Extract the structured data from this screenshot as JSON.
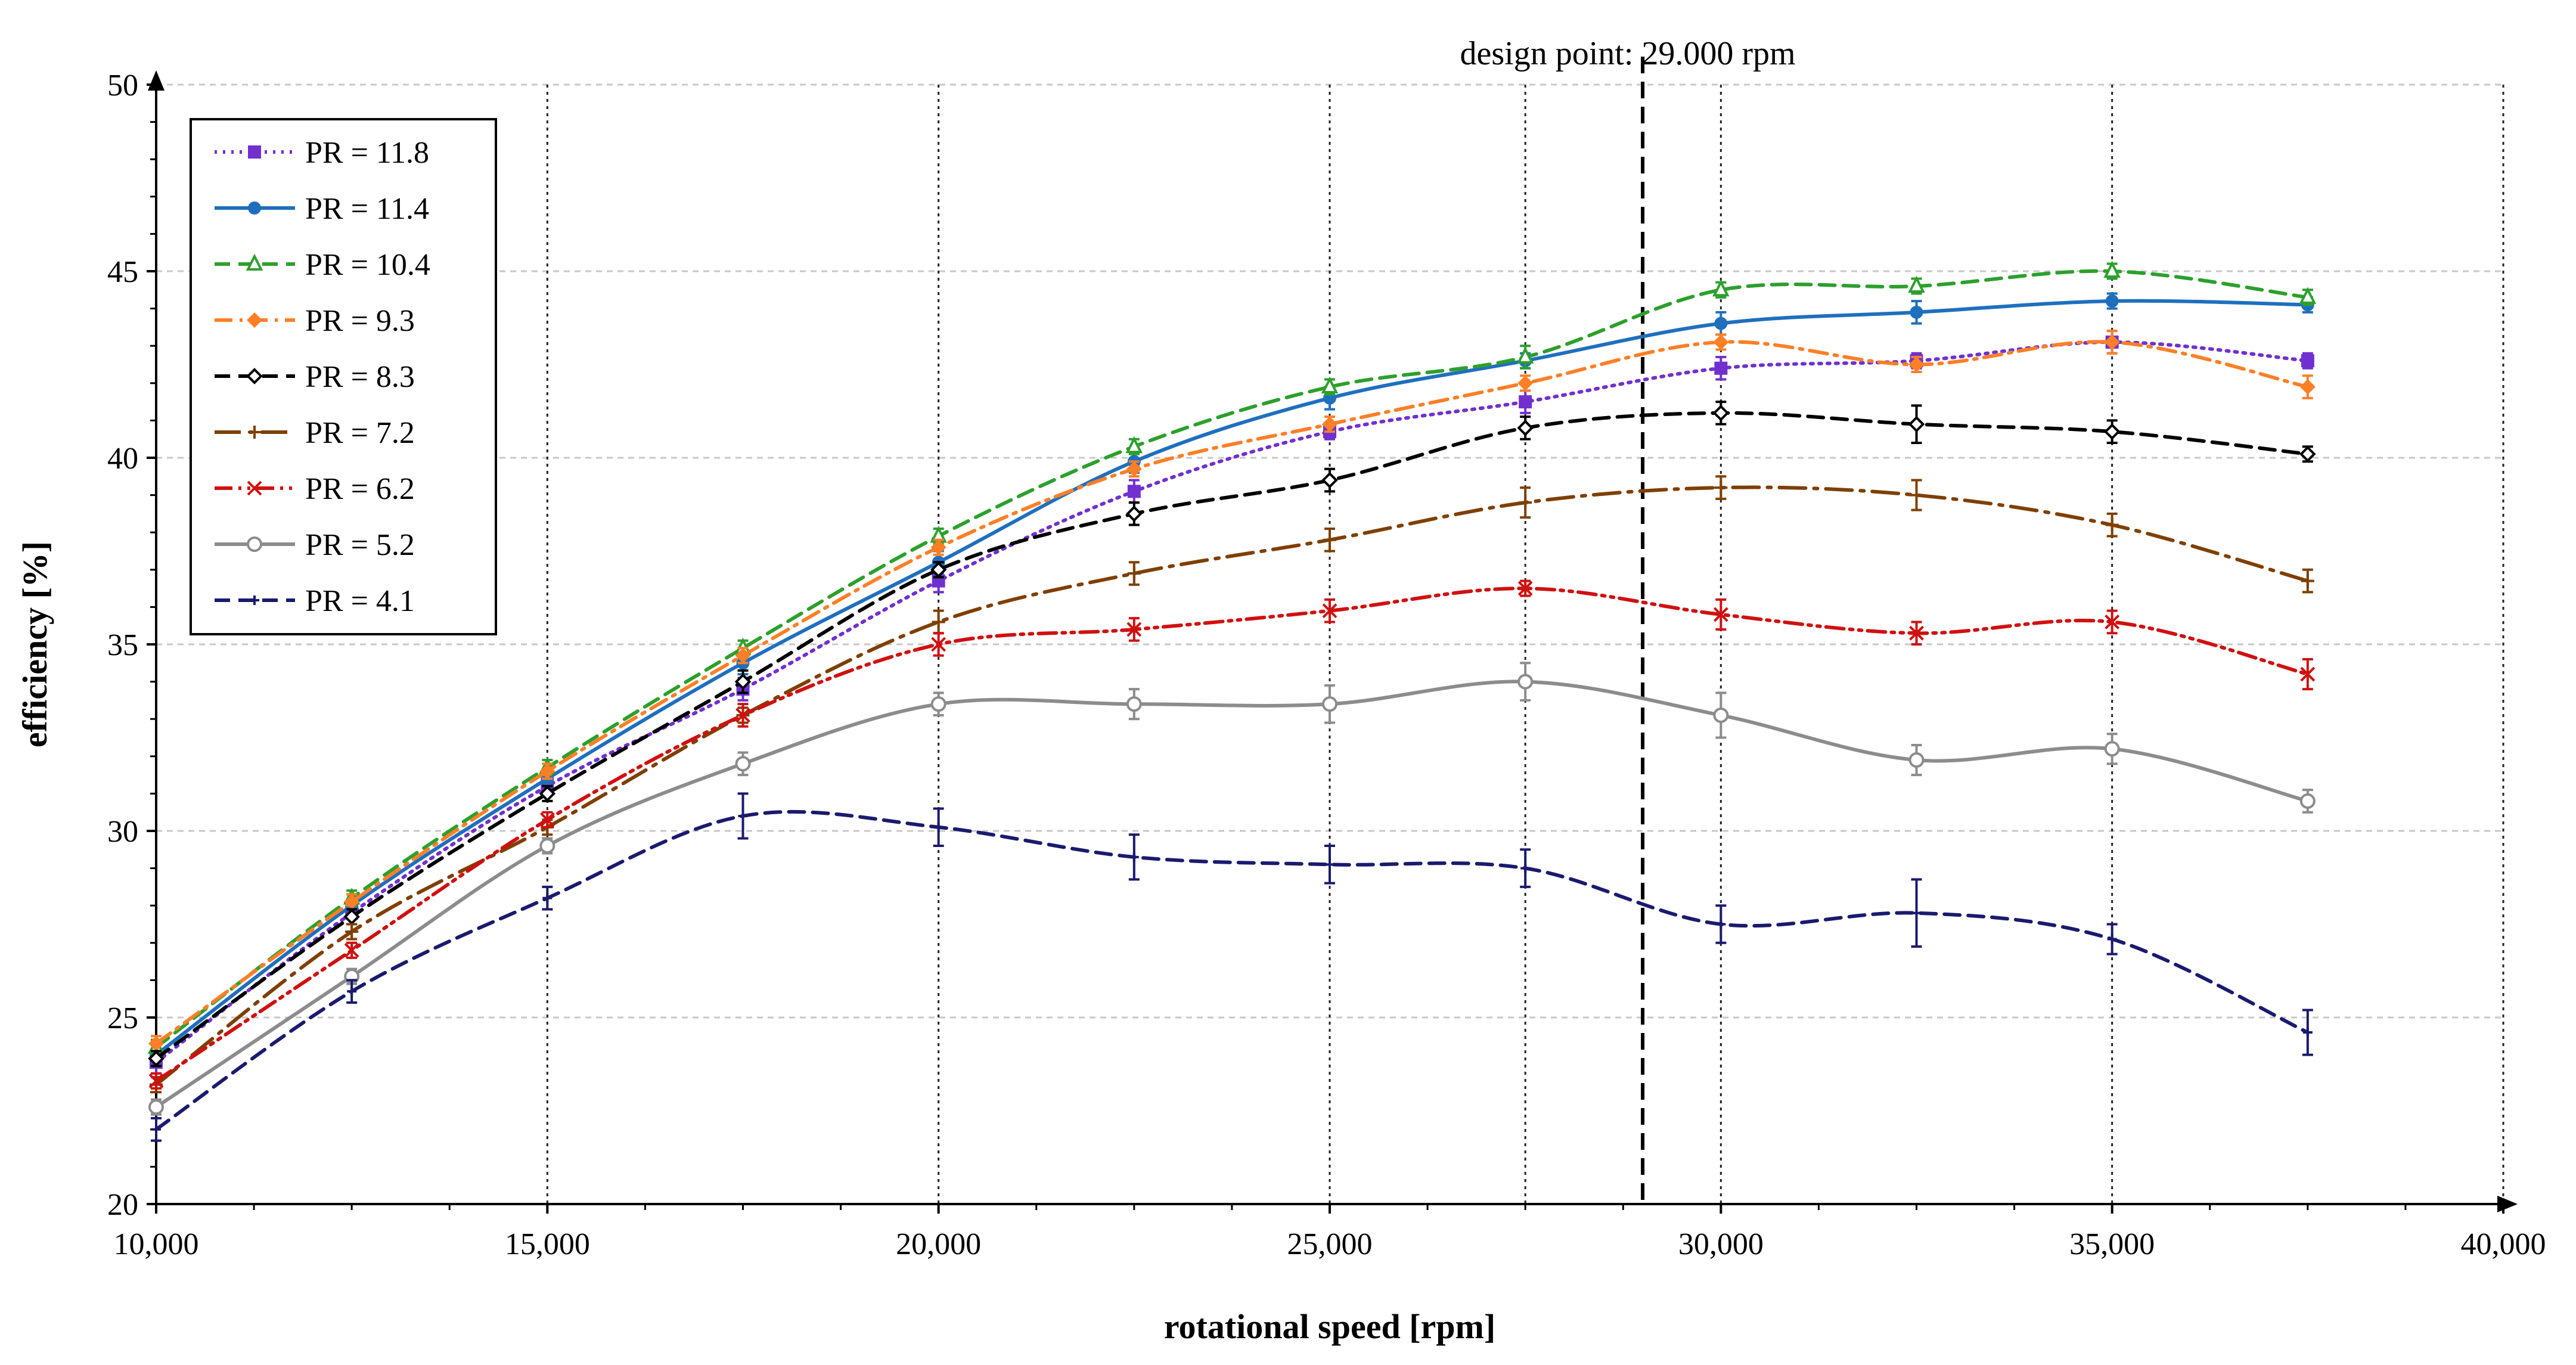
{
  "chart_data": {
    "type": "line",
    "title": "",
    "xlabel": "rotational speed [rpm]",
    "ylabel": "efficiency [%]",
    "xlim": [
      10000,
      40000
    ],
    "ylim": [
      20,
      50
    ],
    "x_ticks": [
      10000,
      15000,
      20000,
      25000,
      30000,
      35000,
      40000
    ],
    "x_tick_labels": [
      "10,000",
      "15,000",
      "20,000",
      "25,000",
      "30,000",
      "35,000",
      "40,000"
    ],
    "y_ticks": [
      20,
      25,
      30,
      35,
      40,
      45,
      50
    ],
    "y_tick_labels": [
      "20",
      "25",
      "30",
      "35",
      "40",
      "45",
      "50"
    ],
    "vertical_gridlines": [
      15000,
      20000,
      25000,
      27500,
      30000,
      35000,
      40000
    ],
    "legend_position": "top-left",
    "annotation": {
      "text": "design point: 29.000 rpm",
      "x": 29000
    },
    "x": [
      10000,
      12500,
      15000,
      17500,
      20000,
      22500,
      25000,
      27500,
      30000,
      32500,
      35000,
      37500
    ],
    "series": [
      {
        "name": "PR = 11.8",
        "color": "#7030d0",
        "dash": "dot",
        "marker": "square",
        "values": [
          23.8,
          27.8,
          31.2,
          33.8,
          36.7,
          39.1,
          40.7,
          41.5,
          42.4,
          42.6,
          43.1,
          42.6
        ],
        "errors": [
          0.3,
          0.3,
          0.2,
          0.3,
          0.3,
          0.3,
          0.2,
          0.3,
          0.3,
          0.2,
          0.3,
          0.2
        ]
      },
      {
        "name": "PR = 11.4",
        "color": "#1f6fbf",
        "dash": "solid",
        "marker": "circle",
        "values": [
          24.0,
          28.0,
          31.4,
          34.5,
          37.2,
          39.9,
          41.6,
          42.6,
          43.6,
          43.9,
          44.2,
          44.1
        ],
        "errors": [
          0.3,
          0.3,
          0.2,
          0.3,
          0.3,
          0.3,
          0.3,
          0.2,
          0.3,
          0.3,
          0.2,
          0.2
        ]
      },
      {
        "name": "PR = 10.4",
        "color": "#2ca02c",
        "dash": "dash",
        "marker": "triangle",
        "values": [
          24.2,
          28.2,
          31.7,
          34.9,
          37.9,
          40.3,
          41.9,
          42.7,
          44.5,
          44.6,
          45.0,
          44.3
        ],
        "errors": [
          0.2,
          0.2,
          0.2,
          0.2,
          0.2,
          0.2,
          0.2,
          0.3,
          0.2,
          0.2,
          0.2,
          0.2
        ]
      },
      {
        "name": "PR = 9.3",
        "color": "#ff7f27",
        "dash": "dashdot",
        "marker": "diamond",
        "values": [
          24.3,
          28.1,
          31.6,
          34.7,
          37.6,
          39.7,
          40.9,
          42.0,
          43.1,
          42.5,
          43.1,
          41.9
        ],
        "errors": [
          0.2,
          0.2,
          0.2,
          0.2,
          0.2,
          0.2,
          0.2,
          0.2,
          0.2,
          0.2,
          0.3,
          0.3
        ]
      },
      {
        "name": "PR = 8.3",
        "color": "#000000",
        "dash": "dash",
        "marker": "diamond-open",
        "values": [
          23.9,
          27.7,
          31.0,
          34.0,
          37.0,
          38.5,
          39.4,
          40.8,
          41.2,
          40.9,
          40.7,
          40.1
        ],
        "errors": [
          0.2,
          0.2,
          0.2,
          0.3,
          0.2,
          0.3,
          0.3,
          0.3,
          0.3,
          0.5,
          0.3,
          0.2
        ]
      },
      {
        "name": "PR = 7.2",
        "color": "#7f3f00",
        "dash": "dashdotlong",
        "marker": "plus",
        "values": [
          23.2,
          27.3,
          30.1,
          33.1,
          35.6,
          36.9,
          37.8,
          38.8,
          39.2,
          39.0,
          38.2,
          36.7
        ],
        "errors": [
          0.2,
          0.2,
          0.2,
          0.2,
          0.3,
          0.3,
          0.3,
          0.4,
          0.3,
          0.4,
          0.3,
          0.3
        ]
      },
      {
        "name": "PR = 6.2",
        "color": "#d01010",
        "dash": "dashdotdot",
        "marker": "x",
        "values": [
          23.3,
          26.8,
          30.3,
          33.1,
          35.0,
          35.4,
          35.9,
          36.5,
          35.8,
          35.3,
          35.6,
          34.2
        ],
        "errors": [
          0.2,
          0.2,
          0.2,
          0.3,
          0.3,
          0.3,
          0.3,
          0.2,
          0.4,
          0.3,
          0.3,
          0.4
        ]
      },
      {
        "name": "PR = 5.2",
        "color": "#8c8c8c",
        "dash": "solid",
        "marker": "circle-open",
        "values": [
          22.6,
          26.1,
          29.6,
          31.8,
          33.4,
          33.4,
          33.4,
          34.0,
          33.1,
          31.9,
          32.2,
          30.8
        ],
        "errors": [
          0.2,
          0.2,
          0.2,
          0.3,
          0.3,
          0.4,
          0.5,
          0.5,
          0.6,
          0.4,
          0.4,
          0.3
        ]
      },
      {
        "name": "PR = 4.1",
        "color": "#1a1a6e",
        "dash": "dash",
        "marker": "plus-small",
        "values": [
          22.0,
          25.7,
          28.2,
          30.4,
          30.1,
          29.3,
          29.1,
          29.0,
          27.5,
          27.8,
          27.1,
          24.6
        ],
        "errors": [
          0.3,
          0.3,
          0.3,
          0.6,
          0.5,
          0.6,
          0.5,
          0.5,
          0.5,
          0.9,
          0.4,
          0.6
        ]
      }
    ]
  }
}
